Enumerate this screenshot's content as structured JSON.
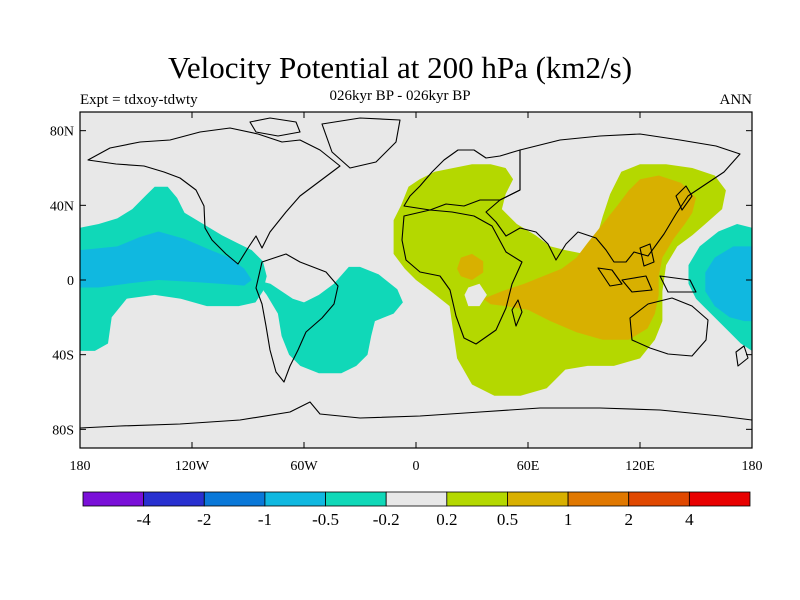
{
  "title": "Velocity Potential at 200 hPa (km2/s)",
  "subtitle": "026kyr BP - 026kyr BP",
  "left_label": "Expt = tdxoy-tdwty",
  "right_label": "ANN",
  "map": {
    "projection": "cylindrical-equidistant",
    "lon_range": [
      -180,
      180
    ],
    "lat_range": [
      -90,
      90
    ],
    "lat_ticks": [
      {
        "value": 80,
        "label": "80N"
      },
      {
        "value": 40,
        "label": "40N"
      },
      {
        "value": 0,
        "label": "0"
      },
      {
        "value": -40,
        "label": "40S"
      },
      {
        "value": -80,
        "label": "80S"
      }
    ],
    "lon_ticks": [
      {
        "value": -180,
        "label": "180"
      },
      {
        "value": -120,
        "label": "120W"
      },
      {
        "value": -60,
        "label": "60W"
      },
      {
        "value": 0,
        "label": "0"
      },
      {
        "value": 60,
        "label": "60E"
      },
      {
        "value": 120,
        "label": "120E"
      },
      {
        "value": 180,
        "label": "180"
      }
    ],
    "background_color": "#e8e8e8",
    "coastline_color": "#000000"
  },
  "colorbar": {
    "colors": [
      "#7a10d8",
      "#2830d0",
      "#0a78d8",
      "#10b8e0",
      "#10d8b8",
      "#e8e8e8",
      "#b4d800",
      "#d8b000",
      "#e07800",
      "#e04800",
      "#e80000"
    ],
    "labels": [
      "-4",
      "-2",
      "-1",
      "-0.5",
      "-0.2",
      "0.2",
      "0.5",
      "1",
      "2",
      "4"
    ]
  },
  "regions": [
    {
      "name": "tropical-pacific-negative-west",
      "level": "-0.5..-0.2",
      "points": [
        [
          -180,
          28
        ],
        [
          -170,
          30
        ],
        [
          -160,
          33
        ],
        [
          -152,
          38
        ],
        [
          -145,
          45
        ],
        [
          -140,
          50
        ],
        [
          -133,
          50
        ],
        [
          -128,
          44
        ],
        [
          -124,
          36
        ],
        [
          -114,
          30
        ],
        [
          -104,
          24
        ],
        [
          -96,
          20
        ],
        [
          -88,
          16
        ],
        [
          -82,
          10
        ],
        [
          -80,
          2
        ],
        [
          -82,
          -6
        ],
        [
          -86,
          -12
        ],
        [
          -95,
          -14
        ],
        [
          -112,
          -14
        ],
        [
          -126,
          -10
        ],
        [
          -140,
          -8
        ],
        [
          -155,
          -10
        ],
        [
          -163,
          -20
        ],
        [
          -165,
          -34
        ],
        [
          -172,
          -38
        ],
        [
          -180,
          -38
        ]
      ]
    },
    {
      "name": "south-atlantic-negative",
      "level": "-0.5..-0.2",
      "points": [
        [
          -86,
          0
        ],
        [
          -80,
          -8
        ],
        [
          -74,
          -18
        ],
        [
          -72,
          -30
        ],
        [
          -68,
          -40
        ],
        [
          -62,
          -46
        ],
        [
          -52,
          -50
        ],
        [
          -40,
          -50
        ],
        [
          -32,
          -46
        ],
        [
          -26,
          -40
        ],
        [
          -24,
          -30
        ],
        [
          -22,
          -22
        ],
        [
          -12,
          -18
        ],
        [
          -7,
          -12
        ],
        [
          -10,
          -5
        ],
        [
          -20,
          3
        ],
        [
          -30,
          7
        ],
        [
          -36,
          7
        ],
        [
          -44,
          -2
        ],
        [
          -52,
          -8
        ],
        [
          -60,
          -12
        ],
        [
          -66,
          -10
        ],
        [
          -72,
          -6
        ],
        [
          -78,
          -2
        ]
      ]
    },
    {
      "name": "pacific-negative-east",
      "level": "-0.5..-0.2",
      "points": [
        [
          180,
          28
        ],
        [
          172,
          30
        ],
        [
          162,
          26
        ],
        [
          152,
          18
        ],
        [
          146,
          8
        ],
        [
          146,
          -2
        ],
        [
          150,
          -10
        ],
        [
          158,
          -18
        ],
        [
          168,
          -28
        ],
        [
          174,
          -34
        ],
        [
          180,
          -38
        ]
      ]
    },
    {
      "name": "pacific-stronger-negative-west",
      "level": "-1..-0.5",
      "points": [
        [
          -180,
          16
        ],
        [
          -170,
          17
        ],
        [
          -160,
          18
        ],
        [
          -148,
          23
        ],
        [
          -138,
          26
        ],
        [
          -124,
          22
        ],
        [
          -110,
          16
        ],
        [
          -100,
          12
        ],
        [
          -92,
          6
        ],
        [
          -88,
          0
        ],
        [
          -92,
          -3
        ],
        [
          -105,
          -2
        ],
        [
          -120,
          -1
        ],
        [
          -138,
          0
        ],
        [
          -155,
          -2
        ],
        [
          -170,
          -4
        ],
        [
          -180,
          -4
        ]
      ]
    },
    {
      "name": "pacific-stronger-negative-east",
      "level": "-1..-0.5",
      "points": [
        [
          180,
          18
        ],
        [
          170,
          18
        ],
        [
          160,
          12
        ],
        [
          155,
          4
        ],
        [
          155,
          -6
        ],
        [
          160,
          -14
        ],
        [
          168,
          -20
        ],
        [
          176,
          -22
        ],
        [
          180,
          -22
        ]
      ]
    },
    {
      "name": "eastern-hemisphere-positive",
      "level": "0.2..0.5",
      "points": [
        [
          -8,
          40
        ],
        [
          -4,
          50
        ],
        [
          2,
          54
        ],
        [
          10,
          58
        ],
        [
          20,
          60
        ],
        [
          30,
          62
        ],
        [
          40,
          62
        ],
        [
          48,
          60
        ],
        [
          52,
          54
        ],
        [
          48,
          46
        ],
        [
          46,
          38
        ],
        [
          54,
          30
        ],
        [
          64,
          24
        ],
        [
          72,
          18
        ],
        [
          80,
          16
        ],
        [
          90,
          14
        ],
        [
          96,
          20
        ],
        [
          100,
          34
        ],
        [
          104,
          46
        ],
        [
          110,
          58
        ],
        [
          120,
          62
        ],
        [
          134,
          62
        ],
        [
          148,
          60
        ],
        [
          160,
          56
        ],
        [
          166,
          48
        ],
        [
          164,
          38
        ],
        [
          155,
          30
        ],
        [
          148,
          24
        ],
        [
          140,
          18
        ],
        [
          134,
          8
        ],
        [
          132,
          -6
        ],
        [
          132,
          -22
        ],
        [
          128,
          -32
        ],
        [
          120,
          -42
        ],
        [
          106,
          -46
        ],
        [
          92,
          -46
        ],
        [
          80,
          -48
        ],
        [
          70,
          -58
        ],
        [
          56,
          -62
        ],
        [
          42,
          -62
        ],
        [
          30,
          -56
        ],
        [
          22,
          -42
        ],
        [
          20,
          -28
        ],
        [
          18,
          -14
        ],
        [
          8,
          -6
        ],
        [
          0,
          0
        ],
        [
          -6,
          6
        ],
        [
          -12,
          14
        ],
        [
          -12,
          24
        ],
        [
          -12,
          32
        ]
      ]
    },
    {
      "name": "indo-pacific-strong-positive",
      "level": "0.5..1",
      "points": [
        [
          36,
          -10
        ],
        [
          46,
          -6
        ],
        [
          58,
          -2
        ],
        [
          68,
          2
        ],
        [
          78,
          6
        ],
        [
          86,
          12
        ],
        [
          92,
          20
        ],
        [
          100,
          30
        ],
        [
          108,
          40
        ],
        [
          114,
          48
        ],
        [
          120,
          54
        ],
        [
          130,
          56
        ],
        [
          142,
          52
        ],
        [
          150,
          44
        ],
        [
          148,
          36
        ],
        [
          144,
          30
        ],
        [
          138,
          22
        ],
        [
          132,
          12
        ],
        [
          130,
          2
        ],
        [
          130,
          -8
        ],
        [
          128,
          -18
        ],
        [
          124,
          -26
        ],
        [
          114,
          -32
        ],
        [
          100,
          -32
        ],
        [
          86,
          -28
        ],
        [
          72,
          -22
        ],
        [
          60,
          -16
        ],
        [
          48,
          -14
        ],
        [
          40,
          -13
        ]
      ]
    },
    {
      "name": "east-africa-strong-positive",
      "level": "0.5..1",
      "points": [
        [
          24,
          12
        ],
        [
          30,
          14
        ],
        [
          36,
          10
        ],
        [
          36,
          4
        ],
        [
          30,
          0
        ],
        [
          24,
          2
        ],
        [
          22,
          6
        ]
      ]
    },
    {
      "name": "east-africa-neutral-hole",
      "level": "-0.2..0.2",
      "points": [
        [
          28,
          -4
        ],
        [
          34,
          -2
        ],
        [
          38,
          -8
        ],
        [
          34,
          -14
        ],
        [
          28,
          -14
        ],
        [
          26,
          -8
        ]
      ]
    }
  ]
}
